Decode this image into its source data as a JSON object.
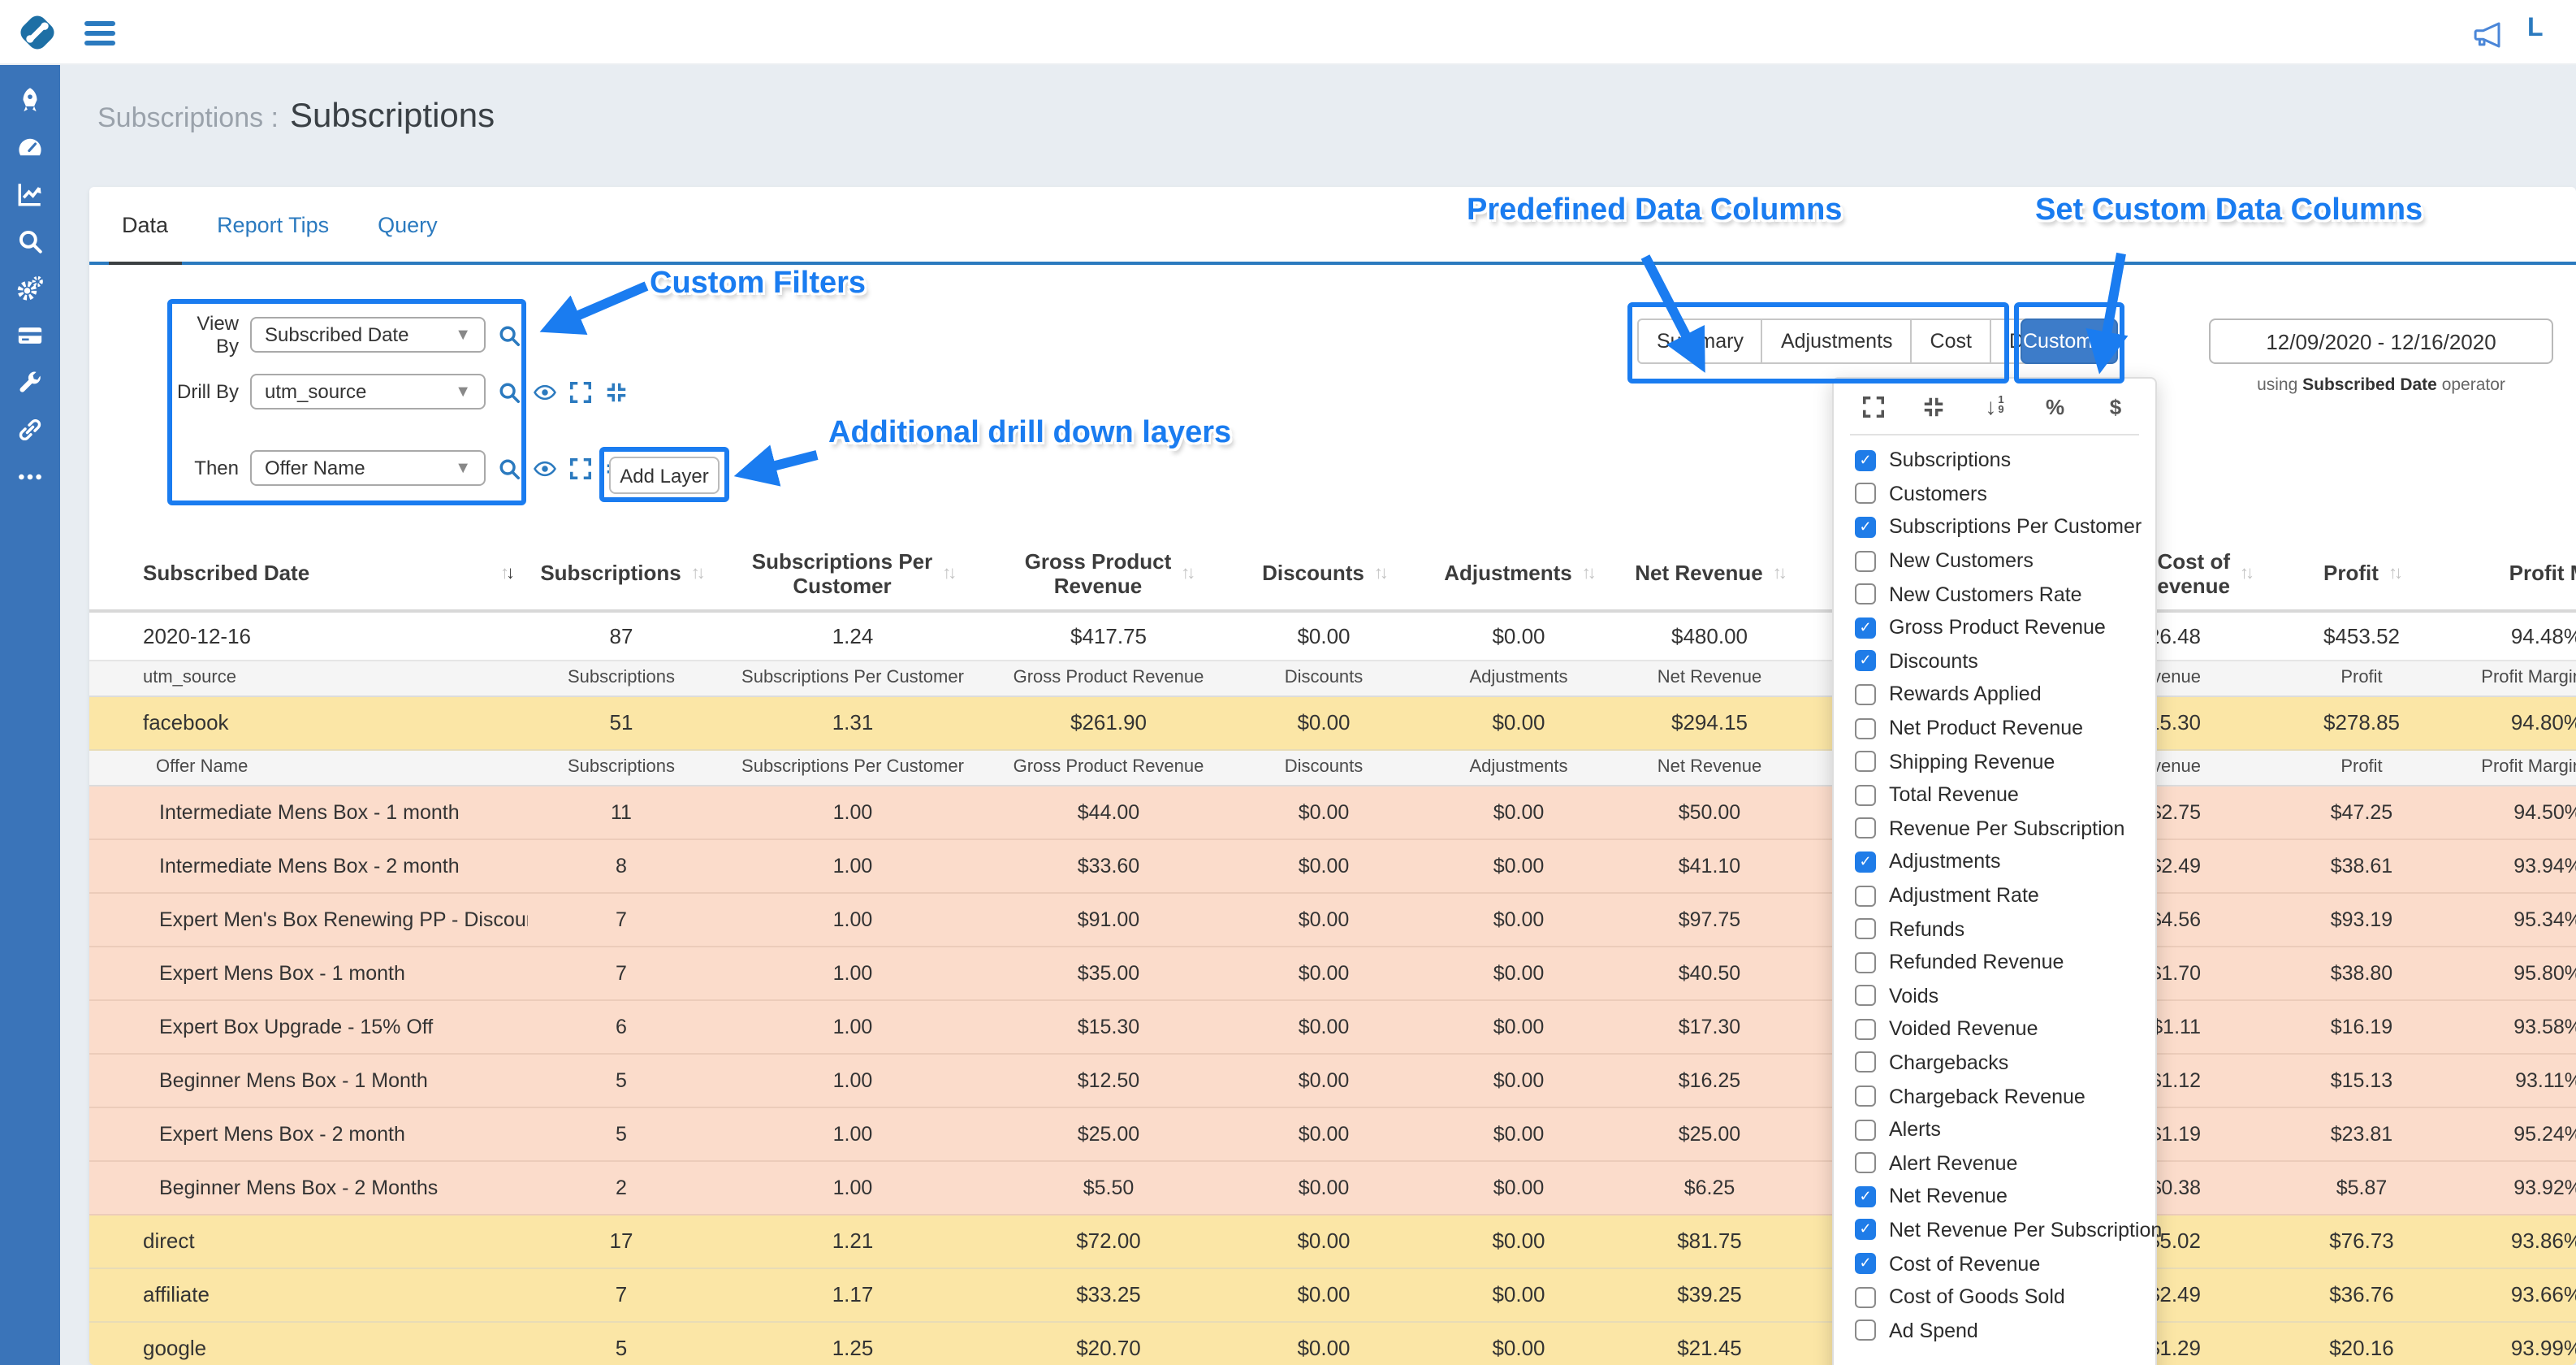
{
  "topbar": {
    "account_label": "L",
    "icons": {
      "menu": "hamburger-icon",
      "announce": "megaphone-icon"
    }
  },
  "sidebar": {
    "icons": [
      "rocket",
      "gauge",
      "chart-line",
      "search",
      "gears",
      "credit-card",
      "wrench",
      "link",
      "ellipsis"
    ]
  },
  "header": {
    "breadcrumb": "Subscriptions :",
    "title": "Subscriptions"
  },
  "tabs": [
    {
      "label": "Data",
      "active": true
    },
    {
      "label": "Report Tips",
      "active": false
    },
    {
      "label": "Query",
      "active": false
    }
  ],
  "annotations": {
    "custom_filters": "Custom Filters",
    "drill_layers": "Additional drill down layers",
    "predefined": "Predefined Data Columns",
    "set_custom": "Set Custom Data Columns"
  },
  "filters": {
    "rows": [
      {
        "label": "View By",
        "value": "Subscribed Date",
        "icons": [
          "search"
        ]
      },
      {
        "label": "Drill By",
        "value": "utm_source",
        "icons": [
          "search",
          "eye",
          "expand",
          "compress"
        ]
      },
      {
        "label": "Then",
        "value": "Offer Name",
        "icons": [
          "search",
          "eye",
          "expand",
          "compress",
          "close"
        ]
      }
    ],
    "add_layer": "Add Layer"
  },
  "predefined_buttons": [
    "Summary",
    "Adjustments",
    "Cost",
    "Detail"
  ],
  "custom_button": {
    "label": "Custom"
  },
  "date_range": {
    "value": "12/09/2020 - 12/16/2020",
    "op_prefix": "using",
    "op_bold": "Subscribed Date",
    "op_suffix": "operator"
  },
  "columns_panel": {
    "toolbar_icons": [
      "expand",
      "compress",
      "sort-numeric",
      "percent",
      "dollar"
    ],
    "items": [
      {
        "label": "Subscriptions",
        "checked": true
      },
      {
        "label": "Customers",
        "checked": false
      },
      {
        "label": "Subscriptions Per Customer",
        "checked": true
      },
      {
        "label": "New Customers",
        "checked": false
      },
      {
        "label": "New Customers Rate",
        "checked": false
      },
      {
        "label": "Gross Product Revenue",
        "checked": true
      },
      {
        "label": "Discounts",
        "checked": true
      },
      {
        "label": "Rewards Applied",
        "checked": false
      },
      {
        "label": "Net Product Revenue",
        "checked": false
      },
      {
        "label": "Shipping Revenue",
        "checked": false
      },
      {
        "label": "Total Revenue",
        "checked": false
      },
      {
        "label": "Revenue Per Subscription",
        "checked": false
      },
      {
        "label": "Adjustments",
        "checked": true
      },
      {
        "label": "Adjustment Rate",
        "checked": false
      },
      {
        "label": "Refunds",
        "checked": false
      },
      {
        "label": "Refunded Revenue",
        "checked": false
      },
      {
        "label": "Voids",
        "checked": false
      },
      {
        "label": "Voided Revenue",
        "checked": false
      },
      {
        "label": "Chargebacks",
        "checked": false
      },
      {
        "label": "Chargeback Revenue",
        "checked": false
      },
      {
        "label": "Alerts",
        "checked": false
      },
      {
        "label": "Alert Revenue",
        "checked": false
      },
      {
        "label": "Net Revenue",
        "checked": true
      },
      {
        "label": "Net Revenue Per Subscription",
        "checked": true
      },
      {
        "label": "Cost of Revenue",
        "checked": true
      },
      {
        "label": "Cost of Goods Sold",
        "checked": false
      },
      {
        "label": "Ad Spend",
        "checked": false
      }
    ]
  },
  "table": {
    "headers": [
      {
        "label": "Subscribed Date",
        "sort": "desc"
      },
      {
        "label": "Subscriptions",
        "sort": "none"
      },
      {
        "label": "Subscriptions Per\nCustomer",
        "sort": "none"
      },
      {
        "label": "Gross Product\nRevenue",
        "sort": "none"
      },
      {
        "label": "Discounts",
        "sort": "none"
      },
      {
        "label": "Adjustments",
        "sort": "none"
      },
      {
        "label": "Net Revenue",
        "sort": "none"
      },
      {
        "label": "Cost of\nRevenue",
        "sort": "none"
      },
      {
        "label": "Profit",
        "sort": "none"
      },
      {
        "label": "Profit Margin",
        "sort": "none"
      }
    ],
    "subheader_labels": [
      "Subscriptions",
      "Subscriptions Per Customer",
      "Gross Product Revenue",
      "Discounts",
      "Adjustments",
      "Net Revenue",
      "Cost of Revenue",
      "Profit",
      "Profit Margin"
    ],
    "rows": [
      {
        "kind": "data",
        "group": "date",
        "name": "2020-12-16",
        "values": [
          "87",
          "1.24",
          "$417.75",
          "$0.00",
          "$0.00",
          "$480.00",
          "$26.48",
          "$453.52",
          "94.48%"
        ]
      },
      {
        "kind": "subheader",
        "name": "utm_source",
        "indent": false
      },
      {
        "kind": "data",
        "group": "utm",
        "name": "facebook",
        "values": [
          "51",
          "1.31",
          "$261.90",
          "$0.00",
          "$0.00",
          "$294.15",
          "$15.30",
          "$278.85",
          "94.80%"
        ]
      },
      {
        "kind": "subheader",
        "name": "Offer Name",
        "indent": true
      },
      {
        "kind": "data",
        "group": "offer",
        "name": "Intermediate Mens Box - 1 month",
        "values": [
          "11",
          "1.00",
          "$44.00",
          "$0.00",
          "$0.00",
          "$50.00",
          "$2.75",
          "$47.25",
          "94.50%"
        ]
      },
      {
        "kind": "data",
        "group": "offer",
        "name": "Intermediate Mens Box - 2 month",
        "values": [
          "8",
          "1.00",
          "$33.60",
          "$0.00",
          "$0.00",
          "$41.10",
          "$2.49",
          "$38.61",
          "93.94%"
        ]
      },
      {
        "kind": "data",
        "group": "offer",
        "name": "Expert Men's Box Renewing PP - Discount Swap",
        "values": [
          "7",
          "1.00",
          "$91.00",
          "$0.00",
          "$0.00",
          "$97.75",
          "$4.56",
          "$93.19",
          "95.34%"
        ]
      },
      {
        "kind": "data",
        "group": "offer",
        "name": "Expert Mens Box - 1 month",
        "values": [
          "7",
          "1.00",
          "$35.00",
          "$0.00",
          "$0.00",
          "$40.50",
          "$1.70",
          "$38.80",
          "95.80%"
        ]
      },
      {
        "kind": "data",
        "group": "offer",
        "name": "Expert Box Upgrade - 15% Off",
        "values": [
          "6",
          "1.00",
          "$15.30",
          "$0.00",
          "$0.00",
          "$17.30",
          "$1.11",
          "$16.19",
          "93.58%"
        ]
      },
      {
        "kind": "data",
        "group": "offer",
        "name": "Beginner Mens Box - 1 Month",
        "values": [
          "5",
          "1.00",
          "$12.50",
          "$0.00",
          "$0.00",
          "$16.25",
          "$1.12",
          "$15.13",
          "93.11%"
        ]
      },
      {
        "kind": "data",
        "group": "offer",
        "name": "Expert Mens Box - 2 month",
        "values": [
          "5",
          "1.00",
          "$25.00",
          "$0.00",
          "$0.00",
          "$25.00",
          "$1.19",
          "$23.81",
          "95.24%"
        ]
      },
      {
        "kind": "data",
        "group": "offer",
        "name": "Beginner Mens Box - 2 Months",
        "values": [
          "2",
          "1.00",
          "$5.50",
          "$0.00",
          "$0.00",
          "$6.25",
          "$0.38",
          "$5.87",
          "93.92%"
        ]
      },
      {
        "kind": "data",
        "group": "utm",
        "name": "direct",
        "values": [
          "17",
          "1.21",
          "$72.00",
          "$0.00",
          "$0.00",
          "$81.75",
          "$5.02",
          "$76.73",
          "93.86%"
        ]
      },
      {
        "kind": "data",
        "group": "utm",
        "name": "affiliate",
        "values": [
          "7",
          "1.17",
          "$33.25",
          "$0.00",
          "$0.00",
          "$39.25",
          "$2.49",
          "$36.76",
          "93.66%"
        ]
      },
      {
        "kind": "data",
        "group": "utm",
        "name": "google",
        "values": [
          "5",
          "1.25",
          "$20.70",
          "$0.00",
          "$0.00",
          "$21.45",
          "$1.29",
          "$20.16",
          "93.99%"
        ]
      }
    ]
  }
}
